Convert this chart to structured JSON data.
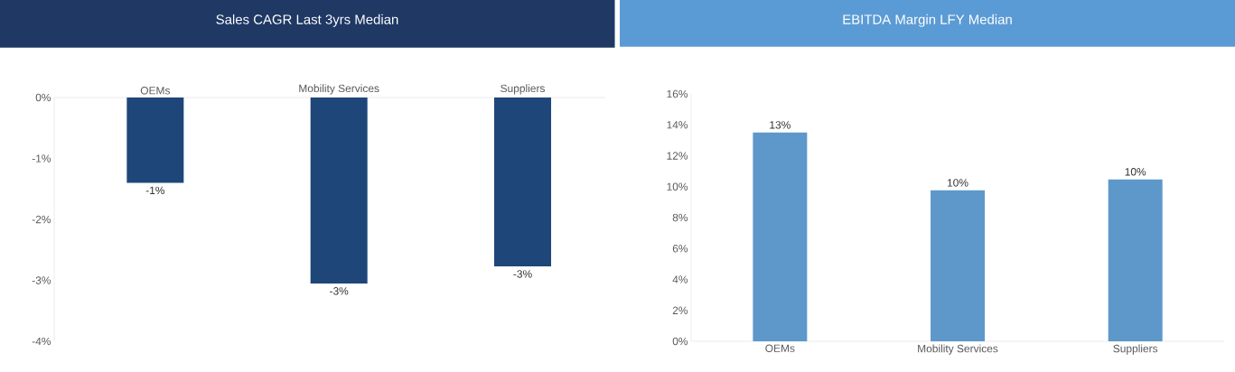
{
  "chart_data": [
    {
      "type": "bar",
      "title": "Sales CAGR Last 3yrs Median",
      "categories": [
        "OEMs",
        "Mobility Services",
        "Suppliers"
      ],
      "values": [
        -1.4,
        -3.05,
        -2.77
      ],
      "color": "#1f4679",
      "value_labels": [
        "-1%",
        "-3%",
        "-3%"
      ],
      "ylim": [
        -4,
        0
      ],
      "yticks": [
        {
          "value": -4,
          "label": "-4%"
        },
        {
          "value": -3,
          "label": "-3%"
        },
        {
          "value": -2,
          "label": "-2%"
        },
        {
          "value": -1,
          "label": "-1%"
        },
        {
          "value": 0,
          "label": "0%"
        }
      ]
    },
    {
      "type": "bar",
      "title": "EBITDA Margin LFY Median",
      "categories": [
        "OEMs",
        "Mobility Services",
        "Suppliers"
      ],
      "values": [
        13.5,
        9.76,
        10.47
      ],
      "color": "#5e98cb",
      "value_labels": [
        "13%",
        "10%",
        "10%"
      ],
      "ylim": [
        0,
        16
      ],
      "yticks": [
        {
          "value": 0,
          "label": "0%"
        },
        {
          "value": 2,
          "label": "2%"
        },
        {
          "value": 4,
          "label": "4%"
        },
        {
          "value": 6,
          "label": "6%"
        },
        {
          "value": 8,
          "label": "8%"
        },
        {
          "value": 10,
          "label": "10%"
        },
        {
          "value": 12,
          "label": "12%"
        },
        {
          "value": 14,
          "label": "14%"
        },
        {
          "value": 16,
          "label": "16%"
        }
      ]
    }
  ]
}
